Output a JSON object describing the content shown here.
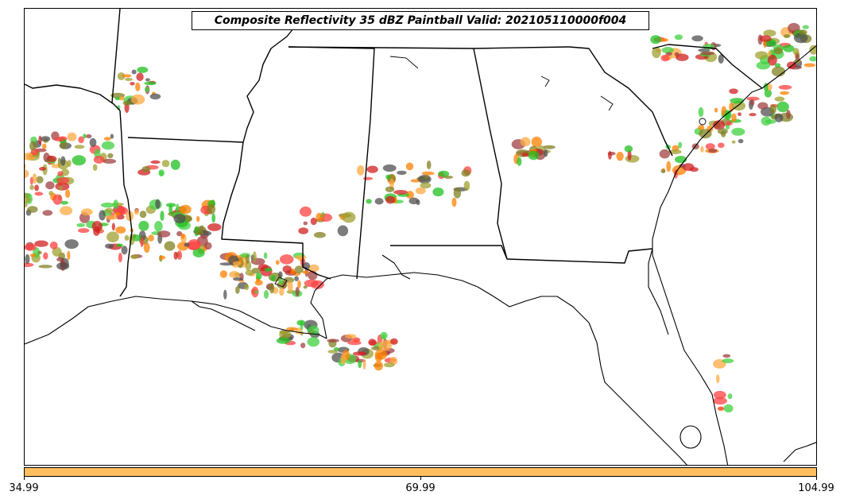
{
  "title": "Composite Reflectivity 35 dBZ Paintball Valid: 202105110000f004",
  "colorbar": {
    "color": "#ffbf5f",
    "ticks": [
      "34.99",
      "69.99",
      "104.99"
    ]
  },
  "member_colors": [
    "#ff4040",
    "#ff8000",
    "#20c020",
    "#a04040",
    "#a0a030",
    "#505050",
    "#ffaa40",
    "#40d040",
    "#d02020",
    "#808020"
  ],
  "map_layers": [
    "coastline",
    "state-borders",
    "reflectivity-paintball"
  ]
}
